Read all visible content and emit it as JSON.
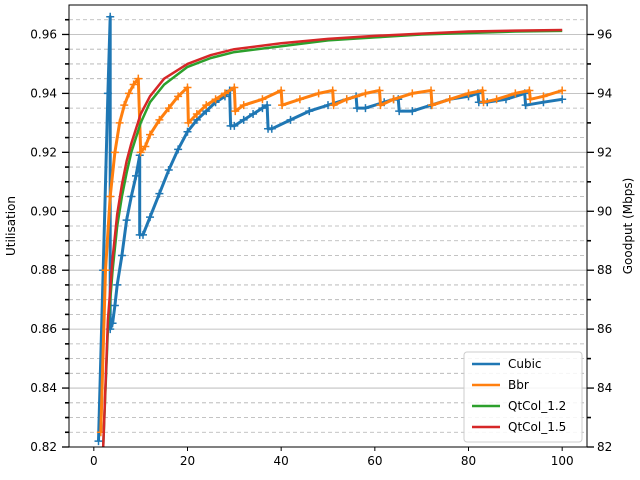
{
  "chart_data": {
    "type": "line",
    "title": "",
    "xlabel": "",
    "ylabel": "Utilisation",
    "ylabel_right": "Goodput (Mbps)",
    "xlim": [
      -5.3,
      105.3
    ],
    "ylim": [
      0.82,
      0.97
    ],
    "ylim_right": [
      82,
      97
    ],
    "x_ticks": [
      0,
      20,
      40,
      60,
      80,
      100
    ],
    "x_tick_labels": [
      "0",
      "20",
      "40",
      "60",
      "80",
      "100"
    ],
    "y_ticks": [
      0.82,
      0.84,
      0.86,
      0.88,
      0.9,
      0.92,
      0.94,
      0.96
    ],
    "y_tick_labels": [
      "0.82",
      "0.84",
      "0.86",
      "0.88",
      "0.90",
      "0.92",
      "0.94",
      "0.96"
    ],
    "y_minor_ticks": [
      0.825,
      0.83,
      0.835,
      0.845,
      0.85,
      0.855,
      0.865,
      0.87,
      0.875,
      0.885,
      0.89,
      0.895,
      0.905,
      0.91,
      0.915,
      0.925,
      0.93,
      0.935,
      0.945,
      0.95,
      0.955,
      0.965
    ],
    "y_right_ticks": [
      82,
      84,
      86,
      88,
      90,
      92,
      94,
      96
    ],
    "y_right_tick_labels": [
      "82",
      "84",
      "86",
      "88",
      "90",
      "92",
      "94",
      "96"
    ],
    "y_right_minor_ticks": [
      83,
      85,
      87,
      89,
      91,
      93,
      95
    ],
    "grid": true,
    "legend_position": "bottom-right",
    "series": [
      {
        "name": "Cubic",
        "color": "#1f77b4",
        "marker": "plus",
        "x": [
          1.0,
          2.0,
          3.0,
          3.5,
          3.5,
          4.0,
          4.5,
          5.0,
          6.0,
          7.0,
          8.0,
          9.0,
          9.8,
          9.8,
          10.5,
          12,
          14,
          16,
          18,
          20,
          22,
          24,
          26,
          28,
          29,
          29.2,
          30,
          32,
          34,
          36,
          37,
          37.2,
          38,
          42,
          46,
          50,
          54,
          56,
          56.2,
          58,
          62,
          64,
          65,
          65.2,
          68,
          72,
          76,
          80,
          82,
          82.2,
          84,
          88,
          92,
          92.2,
          96,
          100
        ],
        "y": [
          0.822,
          0.88,
          0.94,
          0.966,
          0.86,
          0.862,
          0.868,
          0.875,
          0.885,
          0.897,
          0.905,
          0.912,
          0.919,
          0.892,
          0.892,
          0.898,
          0.906,
          0.914,
          0.921,
          0.927,
          0.931,
          0.934,
          0.937,
          0.939,
          0.941,
          0.929,
          0.929,
          0.931,
          0.933,
          0.935,
          0.936,
          0.928,
          0.928,
          0.931,
          0.934,
          0.936,
          0.938,
          0.939,
          0.935,
          0.935,
          0.937,
          0.938,
          0.938,
          0.934,
          0.934,
          0.936,
          0.938,
          0.939,
          0.94,
          0.937,
          0.937,
          0.938,
          0.94,
          0.936,
          0.937,
          0.938
        ]
      },
      {
        "name": "Bbr",
        "color": "#ff7f0e",
        "marker": "plus",
        "x": [
          1.5,
          2.5,
          3.5,
          4.5,
          5.5,
          6.5,
          7.5,
          8.5,
          9.5,
          10.0,
          11,
          12,
          14,
          16,
          18,
          20,
          20.2,
          22,
          24,
          26,
          28,
          30,
          30.2,
          32,
          36,
          40,
          40.2,
          44,
          48,
          51,
          51.2,
          54,
          58,
          61,
          61.2,
          64,
          68,
          72,
          72.2,
          76,
          80,
          83,
          83.2,
          86,
          90,
          93,
          93.2,
          96,
          100
        ],
        "y": [
          0.825,
          0.88,
          0.905,
          0.92,
          0.93,
          0.936,
          0.94,
          0.943,
          0.945,
          0.92,
          0.922,
          0.926,
          0.931,
          0.935,
          0.939,
          0.942,
          0.93,
          0.933,
          0.936,
          0.938,
          0.94,
          0.942,
          0.934,
          0.936,
          0.938,
          0.941,
          0.936,
          0.938,
          0.94,
          0.941,
          0.936,
          0.938,
          0.94,
          0.941,
          0.936,
          0.938,
          0.94,
          0.941,
          0.936,
          0.938,
          0.94,
          0.941,
          0.937,
          0.938,
          0.94,
          0.941,
          0.938,
          0.939,
          0.941
        ]
      },
      {
        "name": "QtCol_1.2",
        "color": "#2ca02c",
        "marker": "none",
        "x": [
          2.0,
          3,
          4,
          5,
          6,
          7,
          8,
          10,
          12,
          15,
          20,
          25,
          30,
          40,
          50,
          60,
          70,
          80,
          90,
          100
        ],
        "y": [
          0.82,
          0.86,
          0.88,
          0.895,
          0.905,
          0.913,
          0.92,
          0.93,
          0.937,
          0.943,
          0.949,
          0.952,
          0.954,
          0.956,
          0.958,
          0.959,
          0.96,
          0.9605,
          0.961,
          0.9612
        ]
      },
      {
        "name": "QtCol_1.5",
        "color": "#d62728",
        "marker": "none",
        "x": [
          2.0,
          3,
          4,
          5,
          6,
          7,
          8,
          10,
          12,
          15,
          20,
          25,
          30,
          40,
          50,
          60,
          70,
          80,
          90,
          100
        ],
        "y": [
          0.82,
          0.863,
          0.884,
          0.899,
          0.909,
          0.917,
          0.923,
          0.933,
          0.939,
          0.945,
          0.95,
          0.953,
          0.955,
          0.957,
          0.9585,
          0.9595,
          0.9603,
          0.961,
          0.9613,
          0.9615
        ]
      }
    ]
  }
}
